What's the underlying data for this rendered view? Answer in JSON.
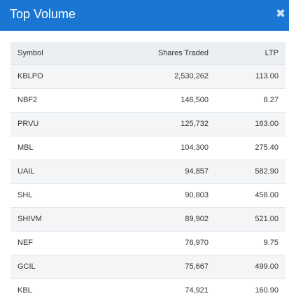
{
  "modal": {
    "title": "Top Volume",
    "close_icon": "close-icon",
    "close_glyph": "✖"
  },
  "table": {
    "columns": [
      "Symbol",
      "Shares Traded",
      "LTP"
    ],
    "rows": [
      [
        "KBLPO",
        "2,530,262",
        "113.00"
      ],
      [
        "NBF2",
        "146,500",
        "8.27"
      ],
      [
        "PRVU",
        "125,732",
        "163.00"
      ],
      [
        "MBL",
        "104,300",
        "275.40"
      ],
      [
        "UAIL",
        "94,857",
        "582.90"
      ],
      [
        "SHL",
        "90,803",
        "458.00"
      ],
      [
        "SHIVM",
        "89,902",
        "521.00"
      ],
      [
        "NEF",
        "76,970",
        "9.75"
      ],
      [
        "GCIL",
        "75,667",
        "499.00"
      ],
      [
        "KBL",
        "74,921",
        "160.90"
      ]
    ]
  },
  "colors": {
    "header_bg": "#1976d2",
    "table_header_bg": "#ebeef2",
    "row_alt_bg": "#f4f5f7"
  }
}
